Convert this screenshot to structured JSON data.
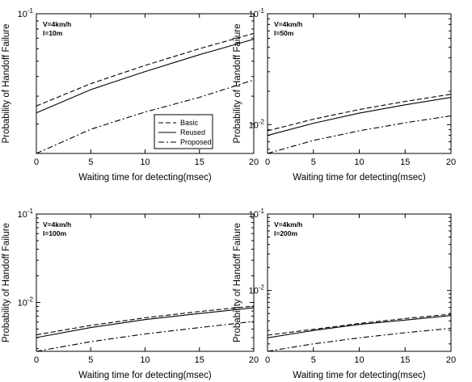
{
  "chart_data": [
    {
      "type": "line",
      "panel": "top-left",
      "annotation": [
        "V=4km/h",
        "l=10m"
      ],
      "xlabel": "Waiting time for detecting(msec)",
      "ylabel": "Probability of Handoff Failure",
      "xlim": [
        0,
        20
      ],
      "ylim": [
        0.013,
        0.1
      ],
      "yscale": "log",
      "xticks": [
        0,
        5,
        10,
        15,
        20
      ],
      "x": [
        0,
        5,
        10,
        15,
        20
      ],
      "series": [
        {
          "name": "Basic",
          "style": "dashed",
          "values": [
            0.026,
            0.036,
            0.047,
            0.06,
            0.075
          ]
        },
        {
          "name": "Reused",
          "style": "solid",
          "values": [
            0.0235,
            0.033,
            0.043,
            0.055,
            0.069
          ]
        },
        {
          "name": "Proposed",
          "style": "dashdot",
          "values": [
            0.013,
            0.0185,
            0.0238,
            0.0295,
            0.038
          ]
        }
      ],
      "legend": {
        "position": "lower-right",
        "entries": [
          "Basic",
          "Reused",
          "Proposed"
        ]
      },
      "grid": false
    },
    {
      "type": "line",
      "panel": "top-right",
      "annotation": [
        "V=4km/h",
        "l=50m"
      ],
      "xlabel": "Waiting time for detecting(msec)",
      "ylabel": "Probability of Handoff Failure",
      "xlim": [
        0,
        20
      ],
      "ylim": [
        0.0055,
        0.1
      ],
      "yscale": "log",
      "xticks": [
        0,
        5,
        10,
        15,
        20
      ],
      "x": [
        0,
        5,
        10,
        15,
        20
      ],
      "series": [
        {
          "name": "Basic",
          "style": "dashed",
          "values": [
            0.0088,
            0.0112,
            0.0137,
            0.0162,
            0.0188
          ]
        },
        {
          "name": "Reused",
          "style": "solid",
          "values": [
            0.008,
            0.0103,
            0.0127,
            0.0151,
            0.0176
          ]
        },
        {
          "name": "Proposed",
          "style": "dashdot",
          "values": [
            0.0055,
            0.0072,
            0.0088,
            0.0104,
            0.012
          ]
        }
      ],
      "grid": false
    },
    {
      "type": "line",
      "panel": "bottom-left",
      "annotation": [
        "V=4km/h",
        "l=100m"
      ],
      "xlabel": "Waiting time for detecting(msec)",
      "ylabel": "Probability of Handoff Failure",
      "xlim": [
        0,
        20
      ],
      "ylim": [
        0.0028,
        0.1
      ],
      "yscale": "log",
      "xticks": [
        0,
        5,
        10,
        15,
        20
      ],
      "x": [
        0,
        5,
        10,
        15,
        20
      ],
      "series": [
        {
          "name": "Basic",
          "style": "dashed",
          "values": [
            0.0043,
            0.0055,
            0.0067,
            0.0079,
            0.0091
          ]
        },
        {
          "name": "Reused",
          "style": "solid",
          "values": [
            0.004,
            0.0052,
            0.0064,
            0.0075,
            0.0087
          ]
        },
        {
          "name": "Proposed",
          "style": "dashdot",
          "values": [
            0.0028,
            0.0036,
            0.0044,
            0.0052,
            0.0061
          ]
        }
      ],
      "grid": false
    },
    {
      "type": "line",
      "panel": "bottom-right",
      "annotation": [
        "V=4km/h",
        "l=200m"
      ],
      "xlabel": "Waiting time for detecting(msec)",
      "ylabel": "Probability of Handoff Failure",
      "xlim": [
        0,
        20
      ],
      "ylim": [
        0.0016,
        0.1
      ],
      "yscale": "log",
      "xticks": [
        0,
        5,
        10,
        15,
        20
      ],
      "x": [
        0,
        5,
        10,
        15,
        20
      ],
      "series": [
        {
          "name": "Basic",
          "style": "dashed",
          "values": [
            0.0026,
            0.0031,
            0.0037,
            0.0043,
            0.0049
          ]
        },
        {
          "name": "Reused",
          "style": "solid",
          "values": [
            0.0024,
            0.003,
            0.0036,
            0.0041,
            0.0047
          ]
        },
        {
          "name": "Proposed",
          "style": "dashdot",
          "values": [
            0.0016,
            0.002,
            0.0024,
            0.0028,
            0.0032
          ]
        }
      ],
      "grid": false
    }
  ],
  "tick_labels": {
    "y_top": "10",
    "y_top_exp": "-1",
    "y_mid": "10",
    "y_mid_exp": "-2",
    "x": [
      "0",
      "5",
      "10",
      "15",
      "20"
    ]
  }
}
